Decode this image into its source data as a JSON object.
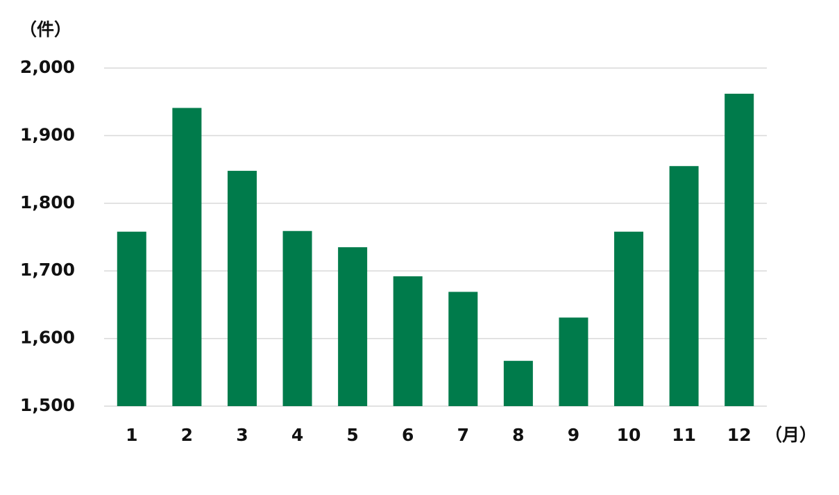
{
  "chart_data": {
    "type": "bar",
    "ylabel": "（件）",
    "xlabel": "（月）",
    "categories": [
      "1",
      "2",
      "3",
      "4",
      "5",
      "6",
      "7",
      "8",
      "9",
      "10",
      "11",
      "12"
    ],
    "values": [
      1758,
      1941,
      1848,
      1759,
      1735,
      1692,
      1669,
      1567,
      1631,
      1758,
      1855,
      1962
    ],
    "color": "#007b4b",
    "ylim": [
      1500,
      2000
    ],
    "yticks": [
      {
        "value": 1500,
        "label": "1,500"
      },
      {
        "value": 1600,
        "label": "1,600"
      },
      {
        "value": 1700,
        "label": "1,700"
      },
      {
        "value": 1800,
        "label": "1,800"
      },
      {
        "value": 1900,
        "label": "1,900"
      },
      {
        "value": 2000,
        "label": "2,000"
      }
    ],
    "grid": true
  }
}
